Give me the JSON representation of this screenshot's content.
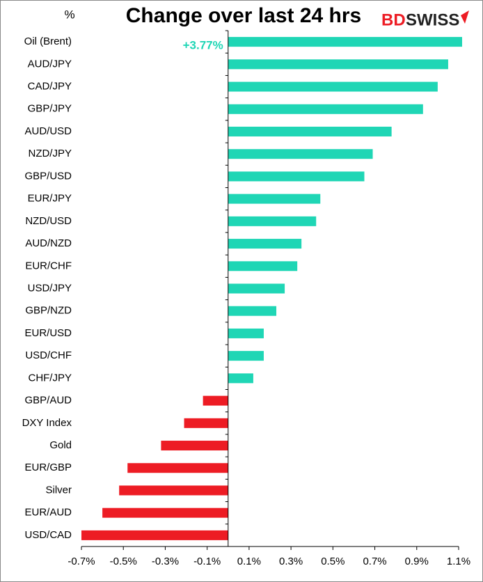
{
  "chart_data": {
    "type": "hbar",
    "title": "Change over last 24 hrs",
    "unit_label": "%",
    "logo_parts": [
      "BD",
      "SWISS"
    ],
    "categories": [
      "Oil (Brent)",
      "AUD/JPY",
      "CAD/JPY",
      "GBP/JPY",
      "AUD/USD",
      "NZD/JPY",
      "GBP/USD",
      "EUR/JPY",
      "NZD/USD",
      "AUD/NZD",
      "EUR/CHF",
      "USD/JPY",
      "GBP/NZD",
      "EUR/USD",
      "USD/CHF",
      "CHF/JPY",
      "GBP/AUD",
      "DXY Index",
      "Gold",
      "EUR/GBP",
      "Silver",
      "EUR/AUD",
      "USD/CAD"
    ],
    "values": [
      3.77,
      1.05,
      1.0,
      0.93,
      0.78,
      0.69,
      0.65,
      0.44,
      0.42,
      0.35,
      0.33,
      0.27,
      0.23,
      0.17,
      0.17,
      0.12,
      -0.12,
      -0.21,
      -0.32,
      -0.48,
      -0.52,
      -0.6,
      -0.7
    ],
    "value_labels": [
      "+3.77%",
      null,
      null,
      null,
      null,
      null,
      null,
      null,
      null,
      null,
      null,
      null,
      null,
      null,
      null,
      null,
      null,
      null,
      null,
      null,
      null,
      null,
      null
    ],
    "positive_color": "#1fd6b5",
    "negative_color": "#ed1c24",
    "xlim": [
      -0.7,
      1.1
    ],
    "xticks": [
      {
        "value": -0.7,
        "label": "-0.7%"
      },
      {
        "value": -0.5,
        "label": "-0.5%"
      },
      {
        "value": -0.3,
        "label": "-0.3%"
      },
      {
        "value": -0.1,
        "label": "-0.1%"
      },
      {
        "value": 0.1,
        "label": "0.1%"
      },
      {
        "value": 0.3,
        "label": "0.3%"
      },
      {
        "value": 0.5,
        "label": "0.5%"
      },
      {
        "value": 0.7,
        "label": "0.7%"
      },
      {
        "value": 0.9,
        "label": "0.9%"
      },
      {
        "value": 1.1,
        "label": "1.1%"
      }
    ]
  }
}
